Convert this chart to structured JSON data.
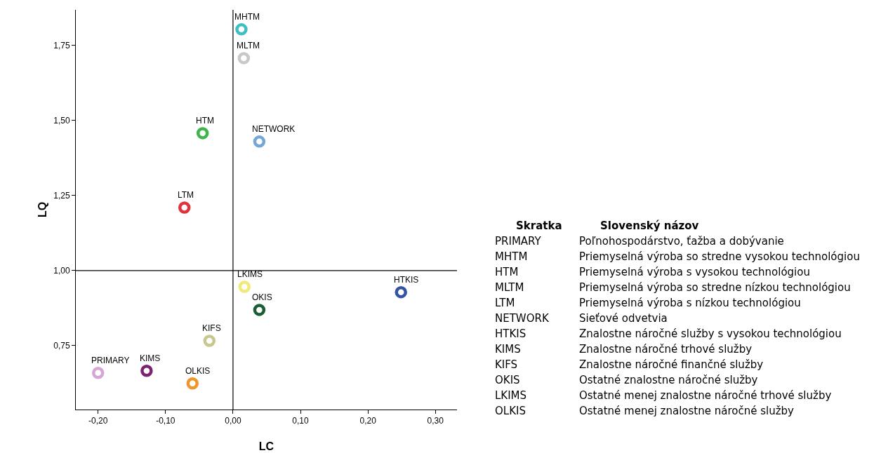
{
  "chart_data": [
    {
      "type": "scatter",
      "xlabel": "LC",
      "ylabel": "LQ",
      "marker": "circle",
      "grid": false,
      "xlim": [
        -0.233,
        0.332
      ],
      "ylim": [
        0.537,
        1.869
      ],
      "xticks": [
        {
          "value": -0.2,
          "label": "-0,20"
        },
        {
          "value": -0.1,
          "label": "-0,10"
        },
        {
          "value": 0,
          "label": "0,00"
        },
        {
          "value": 0.1,
          "label": "0,10"
        },
        {
          "value": 0.2,
          "label": "0,20"
        },
        {
          "value": 0.3,
          "label": "0,30"
        }
      ],
      "yticks": [
        {
          "value": 0.75,
          "label": "0,75"
        },
        {
          "value": 1,
          "label": "1,00"
        },
        {
          "value": 1.25,
          "label": "1,25"
        },
        {
          "value": 1.5,
          "label": "1,50"
        },
        {
          "value": 1.75,
          "label": "1,75"
        }
      ],
      "ref_lines": [
        {
          "axis": "x",
          "value": 0,
          "color": "#000000"
        },
        {
          "axis": "y",
          "value": 1,
          "color": "#000000"
        }
      ],
      "x": [
        0.0125,
        0.016,
        -0.045,
        0.039,
        -0.072,
        0.017,
        0.249,
        0.039,
        -0.035,
        -0.2,
        -0.128,
        -0.06
      ],
      "values": [
        1.804,
        1.708,
        1.458,
        1.43,
        1.21,
        0.946,
        0.928,
        0.869,
        0.766,
        0.659,
        0.666,
        0.624
      ],
      "colors": [
        "#3dbfc4",
        "#c8c8c8",
        "#3db54a",
        "#74a6d6",
        "#e2333b",
        "#f1ea7a",
        "#3553a4",
        "#1a5e33",
        "#c9c78f",
        "#d4a8d4",
        "#7b2472",
        "#f0952a"
      ],
      "annotations": [
        {
          "text": "MHTM",
          "x": 0.0125,
          "y": 1.804
        },
        {
          "text": "MLTM",
          "x": 0.016,
          "y": 1.708
        },
        {
          "text": "HTM",
          "x": -0.045,
          "y": 1.458
        },
        {
          "text": "NETWORK",
          "x": 0.039,
          "y": 1.43
        },
        {
          "text": "LTM",
          "x": -0.072,
          "y": 1.21
        },
        {
          "text": "LKIMS",
          "x": 0.017,
          "y": 0.946
        },
        {
          "text": "HTKIS",
          "x": 0.249,
          "y": 0.928
        },
        {
          "text": "OKIS",
          "x": 0.039,
          "y": 0.869
        },
        {
          "text": "KIFS",
          "x": -0.035,
          "y": 0.766
        },
        {
          "text": "PRIMARY",
          "x": -0.2,
          "y": 0.659
        },
        {
          "text": "KIMS",
          "x": -0.128,
          "y": 0.666
        },
        {
          "text": "OLKIS",
          "x": -0.06,
          "y": 0.624
        }
      ]
    },
    {
      "type": "other",
      "annotations": [
        "Skratka",
        "Slovenský názov",
        "PRIMARY",
        "Poľnohospodárstvo, ťažba a dobývanie",
        "MHTM",
        "Priemyselná výroba so stredne vysokou technológiou",
        "HTM",
        "Priemyselná výroba s vysokou technológiou",
        "MLTM",
        "Priemyselná výroba so stredne nízkou technológiou",
        "LTM",
        "Priemyselná výroba s nízkou technológiou",
        "NETWORK",
        "Sieťové odvetvia",
        "HTKIS",
        "Znalostne náročné služby s vysokou technológiou",
        "KIMS",
        "Znalostne náročné trhové služby",
        "KIFS",
        "Znalostne náročné finančné služby",
        "OKIS",
        "Ostatné znalostne náročné služby",
        "LKIMS",
        "Ostatné menej znalostne náročné trhové služby",
        "OLKIS",
        "Ostatné menej znalostne náročné služby"
      ]
    }
  ]
}
